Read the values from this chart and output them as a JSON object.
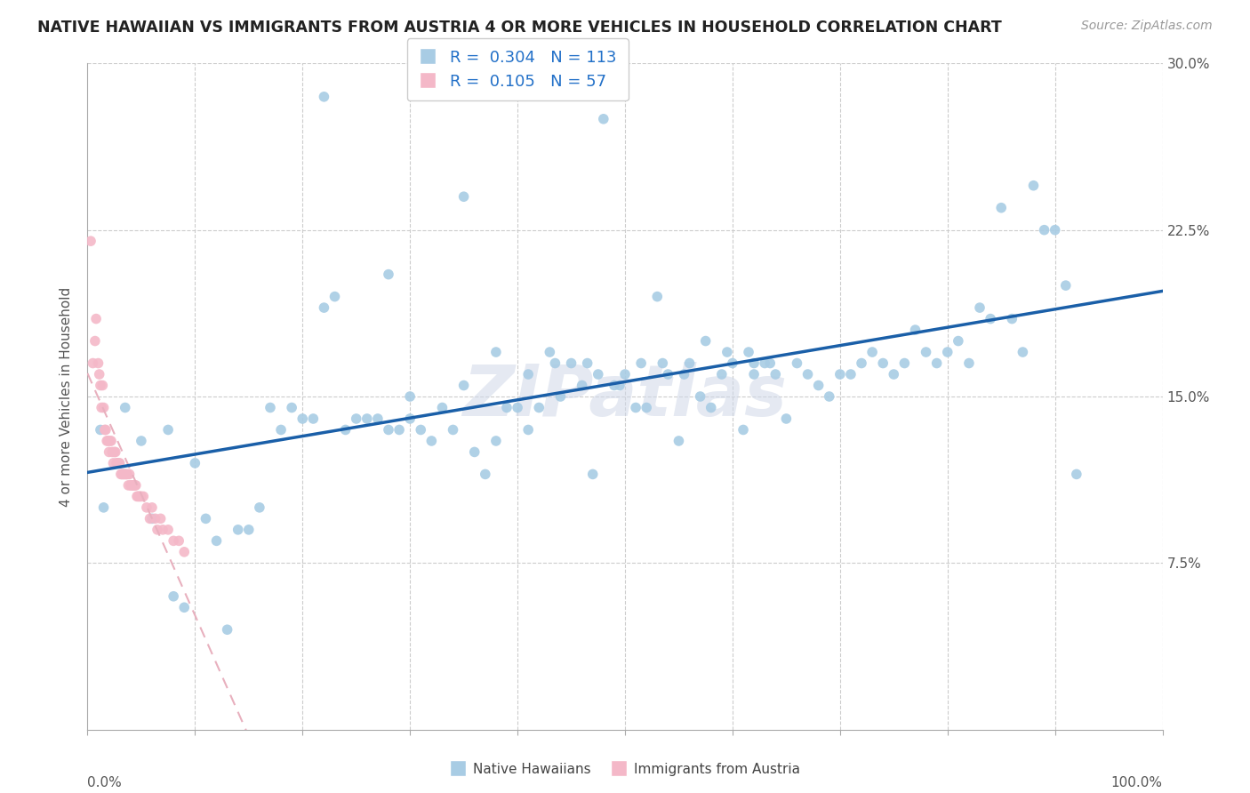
{
  "title": "NATIVE HAWAIIAN VS IMMIGRANTS FROM AUSTRIA 4 OR MORE VEHICLES IN HOUSEHOLD CORRELATION CHART",
  "source": "Source: ZipAtlas.com",
  "ylabel": "4 or more Vehicles in Household",
  "legend_label1": "Native Hawaiians",
  "legend_label2": "Immigrants from Austria",
  "R1": 0.304,
  "N1": 113,
  "R2": 0.105,
  "N2": 57,
  "blue_color": "#a8cce4",
  "pink_color": "#f4b8c8",
  "line_blue": "#1a5fa8",
  "line_pink_dashed": "#e8b0be",
  "watermark": "ZIPatlas",
  "xmin": 0,
  "xmax": 100,
  "ymin": 0,
  "ymax": 30,
  "xtick_positions": [
    0,
    10,
    20,
    30,
    40,
    50,
    60,
    70,
    80,
    90,
    100
  ],
  "ytick_positions": [
    0,
    7.5,
    15.0,
    22.5,
    30.0
  ],
  "blue_x": [
    1.2,
    1.5,
    3.5,
    5.0,
    6.0,
    7.5,
    8.0,
    9.0,
    10.0,
    11.0,
    12.0,
    13.0,
    14.0,
    15.0,
    16.0,
    17.0,
    18.0,
    19.0,
    20.0,
    21.0,
    22.0,
    23.0,
    24.0,
    25.0,
    26.0,
    27.0,
    28.0,
    29.0,
    30.0,
    31.0,
    32.0,
    33.0,
    34.0,
    35.0,
    36.0,
    37.0,
    38.0,
    39.0,
    40.0,
    41.0,
    42.0,
    43.0,
    44.0,
    45.0,
    46.0,
    47.0,
    48.0,
    49.0,
    50.0,
    51.0,
    52.0,
    53.0,
    54.0,
    55.0,
    56.0,
    57.0,
    58.0,
    59.0,
    60.0,
    61.0,
    62.0,
    63.0,
    64.0,
    65.0,
    66.0,
    67.0,
    68.0,
    69.0,
    70.0,
    71.0,
    72.0,
    73.0,
    74.0,
    75.0,
    76.0,
    77.0,
    78.0,
    79.0,
    80.0,
    81.0,
    82.0,
    83.0,
    84.0,
    85.0,
    86.0,
    87.0,
    88.0,
    89.0,
    90.0,
    91.0,
    92.0,
    47.5,
    49.5,
    51.5,
    53.5,
    62.0,
    28.0,
    30.0,
    22.0,
    35.0,
    38.0,
    41.0,
    43.5,
    46.5,
    55.5,
    57.5,
    59.5,
    61.5,
    63.5
  ],
  "blue_y": [
    13.5,
    10.0,
    14.5,
    13.0,
    9.5,
    13.5,
    6.0,
    5.5,
    12.0,
    9.5,
    8.5,
    4.5,
    9.0,
    9.0,
    10.0,
    14.5,
    13.5,
    14.5,
    14.0,
    14.0,
    28.5,
    19.5,
    13.5,
    14.0,
    14.0,
    14.0,
    13.5,
    13.5,
    14.0,
    13.5,
    13.0,
    14.5,
    13.5,
    24.0,
    12.5,
    11.5,
    13.0,
    14.5,
    14.5,
    13.5,
    14.5,
    17.0,
    15.0,
    16.5,
    15.5,
    11.5,
    27.5,
    15.5,
    16.0,
    14.5,
    14.5,
    19.5,
    16.0,
    13.0,
    16.5,
    15.0,
    14.5,
    16.0,
    16.5,
    13.5,
    16.5,
    16.5,
    16.0,
    14.0,
    16.5,
    16.0,
    15.5,
    15.0,
    16.0,
    16.0,
    16.5,
    17.0,
    16.5,
    16.0,
    16.5,
    18.0,
    17.0,
    16.5,
    17.0,
    17.5,
    16.5,
    19.0,
    18.5,
    23.5,
    18.5,
    17.0,
    24.5,
    22.5,
    22.5,
    20.0,
    11.5,
    16.0,
    15.5,
    16.5,
    16.5,
    16.0,
    20.5,
    15.0,
    19.0,
    15.5,
    17.0,
    16.0,
    16.5,
    16.5,
    16.0,
    17.5,
    17.0,
    17.0,
    16.5
  ],
  "pink_x": [
    0.3,
    0.5,
    0.7,
    0.8,
    1.0,
    1.1,
    1.2,
    1.3,
    1.4,
    1.5,
    1.6,
    1.7,
    1.8,
    1.9,
    2.0,
    2.1,
    2.2,
    2.3,
    2.4,
    2.5,
    2.6,
    2.7,
    2.8,
    2.9,
    3.0,
    3.1,
    3.2,
    3.3,
    3.4,
    3.5,
    3.6,
    3.7,
    3.8,
    3.9,
    4.0,
    4.1,
    4.2,
    4.3,
    4.4,
    4.5,
    4.6,
    4.7,
    4.8,
    4.9,
    5.0,
    5.2,
    5.5,
    5.8,
    6.0,
    6.3,
    6.5,
    6.8,
    7.0,
    7.5,
    8.0,
    8.5,
    9.0
  ],
  "pink_y": [
    22.0,
    16.5,
    17.5,
    18.5,
    16.5,
    16.0,
    15.5,
    14.5,
    15.5,
    14.5,
    13.5,
    13.5,
    13.0,
    13.0,
    12.5,
    13.0,
    13.0,
    12.5,
    12.0,
    12.5,
    12.5,
    12.0,
    12.0,
    12.0,
    12.0,
    11.5,
    11.5,
    11.5,
    11.5,
    11.5,
    11.5,
    11.5,
    11.0,
    11.5,
    11.0,
    11.0,
    11.0,
    11.0,
    11.0,
    11.0,
    10.5,
    10.5,
    10.5,
    10.5,
    10.5,
    10.5,
    10.0,
    9.5,
    10.0,
    9.5,
    9.0,
    9.5,
    9.0,
    9.0,
    8.5,
    8.5,
    8.0
  ]
}
